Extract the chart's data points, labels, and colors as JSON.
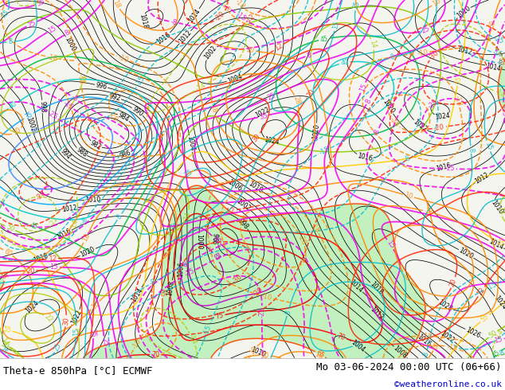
{
  "title_left": "Theta-e 850hPa [°C] ECMWF",
  "title_right": "Mo 03-06-2024 00:00 UTC (06+66)",
  "copyright": "©weatheronline.co.uk",
  "bg_color": "#ffffff",
  "map_bg_color": "#f5f5f0",
  "fig_width": 6.34,
  "fig_height": 4.9,
  "dpi": 100,
  "bottom_bar_height": 0.082,
  "bottom_bar_color": "#ffffff",
  "title_fontsize": 9.0,
  "copyright_fontsize": 8.0,
  "copyright_color": "#0000cc"
}
